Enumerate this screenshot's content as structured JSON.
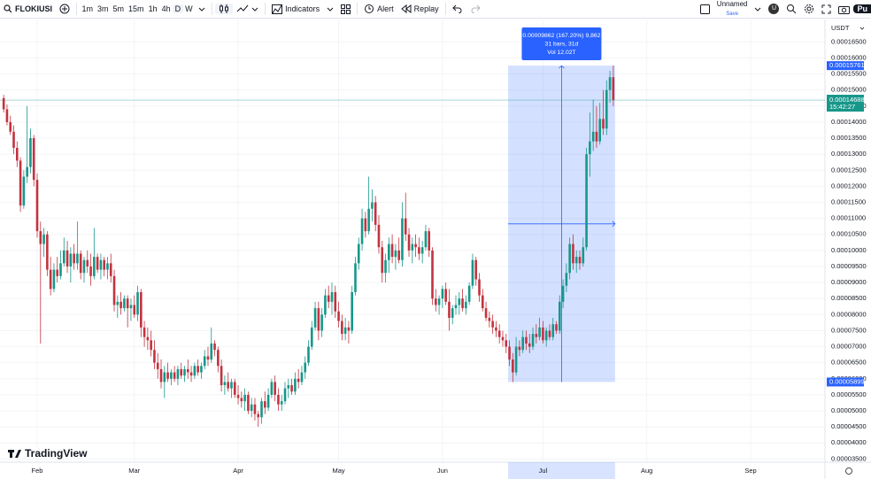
{
  "toolbar": {
    "symbol": "FLOKIUSI",
    "intervals": [
      "1m",
      "3m",
      "5m",
      "15m",
      "1h",
      "4h",
      "D",
      "W"
    ],
    "indicators": "Indicators",
    "alert": "Alert",
    "replay": "Replay",
    "layout_name": "Unnamed",
    "save": "Save",
    "user": "U",
    "publish": "Pu"
  },
  "chart_data": {
    "type": "candlestick",
    "currency": "USDT",
    "watermark": "TradingView",
    "up_color": "#17978a",
    "down_color": "#c2333f",
    "grid": true,
    "xlim": [
      -1.1,
      245.2
    ],
    "xticks": [
      {
        "value": 10,
        "label": "Feb"
      },
      {
        "value": 39,
        "label": "Mar"
      },
      {
        "value": 70,
        "label": "Apr"
      },
      {
        "value": 100,
        "label": "May"
      },
      {
        "value": 131,
        "label": "Jun"
      },
      {
        "value": 161,
        "label": "Jul"
      },
      {
        "value": 192,
        "label": "Aug"
      },
      {
        "value": 223,
        "label": "Sep"
      }
    ],
    "ylim": [
      3.4e-05,
      0.000172
    ],
    "yticks": [
      {
        "value": 3.5e-05,
        "label": "0.00003500"
      },
      {
        "value": 4e-05,
        "label": "0.00004000"
      },
      {
        "value": 4.5e-05,
        "label": "0.00004500"
      },
      {
        "value": 5e-05,
        "label": "0.00005000"
      },
      {
        "value": 5.5e-05,
        "label": "0.00005500"
      },
      {
        "value": 6e-05,
        "label": "0.00006000"
      },
      {
        "value": 6.5e-05,
        "label": "0.00006500"
      },
      {
        "value": 7e-05,
        "label": "0.00007000"
      },
      {
        "value": 7.5e-05,
        "label": "0.00007500"
      },
      {
        "value": 8e-05,
        "label": "0.00008000"
      },
      {
        "value": 8.5e-05,
        "label": "0.00008500"
      },
      {
        "value": 9e-05,
        "label": "0.00009000"
      },
      {
        "value": 9.5e-05,
        "label": "0.00009500"
      },
      {
        "value": 0.0001,
        "label": "0.00010000"
      },
      {
        "value": 0.000105,
        "label": "0.00010500"
      },
      {
        "value": 0.00011,
        "label": "0.00011000"
      },
      {
        "value": 0.000115,
        "label": "0.00011500"
      },
      {
        "value": 0.00012,
        "label": "0.00012000"
      },
      {
        "value": 0.000125,
        "label": "0.00012500"
      },
      {
        "value": 0.00013,
        "label": "0.00013000"
      },
      {
        "value": 0.000135,
        "label": "0.00013500"
      },
      {
        "value": 0.00014,
        "label": "0.00014000"
      },
      {
        "value": 0.000145,
        "label": "0.00014500"
      },
      {
        "value": 0.00015,
        "label": "0.00015000"
      },
      {
        "value": 0.000155,
        "label": "0.00015500"
      },
      {
        "value": 0.00016,
        "label": "0.00016000"
      },
      {
        "value": 0.000165,
        "label": "0.00016500"
      }
    ],
    "last_price": 0.00014688,
    "countdown": "15:42:27",
    "measure": {
      "change": "0.00009862 (167.20%) 9,862",
      "bars": "31 bars, 31d",
      "volume": "Vol 12.02T"
    },
    "ohlc": [
      [
        0.0001475,
        0.0001485,
        0.000143,
        0.000144
      ],
      [
        0.000144,
        0.0001455,
        0.000139,
        0.00014
      ],
      [
        0.00014,
        0.000142,
        0.000136,
        0.000137
      ],
      [
        0.000137,
        0.000139,
        0.00013,
        0.000132
      ],
      [
        0.000132,
        0.000134,
        0.000126,
        0.000128
      ],
      [
        0.000128,
        0.000129,
        0.000112,
        0.000114
      ],
      [
        0.000114,
        0.000125,
        0.000113,
        0.000123
      ],
      [
        0.000123,
        0.000145,
        0.000121,
        0.000126
      ],
      [
        0.000126,
        0.000138,
        0.000124,
        0.000135
      ],
      [
        0.000135,
        0.000136,
        0.00012,
        0.000122
      ],
      [
        0.000122,
        0.000124,
        0.000104,
        0.000106
      ],
      [
        0.000106,
        0.000109,
        7.1e-05,
        0.000102
      ],
      [
        0.000102,
        0.000107,
        9.8e-05,
        0.000105
      ],
      [
        0.000105,
        0.000106,
        9.2e-05,
        9.4e-05
      ],
      [
        9.4e-05,
        9.8e-05,
        8.6e-05,
        8.8e-05
      ],
      [
        8.8e-05,
        9.6e-05,
        8.7e-05,
        9.4e-05
      ],
      [
        9.4e-05,
        9.8e-05,
        9e-05,
        9.2e-05
      ],
      [
        9.2e-05,
        0.0001,
        9.1e-05,
        9.6e-05
      ],
      [
        9.6e-05,
        0.000104,
        9.5e-05,
        0.0001
      ],
      [
        0.0001,
        0.000103,
        9.3e-05,
        9.5e-05
      ],
      [
        9.5e-05,
        0.000101,
        9e-05,
        9.9e-05
      ],
      [
        9.9e-05,
        0.000102,
        9.4e-05,
        9.6e-05
      ],
      [
        9.6e-05,
        0.000109,
        9.4e-05,
        9.9e-05
      ],
      [
        9.9e-05,
        0.0001,
        9.1e-05,
        9.3e-05
      ],
      [
        9.3e-05,
        9.8e-05,
        9e-05,
        9.7e-05
      ],
      [
        9.7e-05,
        0.0001,
        9.3e-05,
        9.5e-05
      ],
      [
        9.5e-05,
        9.9e-05,
        8.9e-05,
        9.2e-05
      ],
      [
        9.2e-05,
        0.000107,
        9.1e-05,
        9.8e-05
      ],
      [
        9.8e-05,
        9.9e-05,
        9.3e-05,
        9.4e-05
      ],
      [
        9.4e-05,
        9.9e-05,
        9.1e-05,
        9.7e-05
      ],
      [
        9.7e-05,
        9.8e-05,
        9.2e-05,
        9.4e-05
      ],
      [
        9.4e-05,
        9.8e-05,
        9.1e-05,
        9.6e-05
      ],
      [
        9.6e-05,
        9.9e-05,
        9e-05,
        9.2e-05
      ],
      [
        9.2e-05,
        9.4e-05,
        8.1e-05,
        8.3e-05
      ],
      [
        8.3e-05,
        8.6e-05,
        7.9e-05,
        8.4e-05
      ],
      [
        8.4e-05,
        8.7e-05,
        8e-05,
        8.2e-05
      ],
      [
        8.2e-05,
        8.6e-05,
        8.1e-05,
        8.5e-05
      ],
      [
        8.5e-05,
        8.6e-05,
        7.6e-05,
        8.2e-05
      ],
      [
        8.2e-05,
        8.5e-05,
        7.8e-05,
        8.3e-05
      ],
      [
        8.3e-05,
        8.6e-05,
        7.9e-05,
        8e-05
      ],
      [
        8e-05,
        8.9e-05,
        7.8e-05,
        8.7e-05
      ],
      [
        8.7e-05,
        8.8e-05,
        7.3e-05,
        7.6e-05
      ],
      [
        7.6e-05,
        7.8e-05,
        7e-05,
        7.3e-05
      ],
      [
        7.3e-05,
        7.6e-05,
        6.9e-05,
        7.2e-05
      ],
      [
        7.2e-05,
        7.5e-05,
        6.7e-05,
        6.9e-05
      ],
      [
        6.9e-05,
        7.2e-05,
        6.3e-05,
        6.5e-05
      ],
      [
        6.5e-05,
        6.8e-05,
        6e-05,
        6.3e-05
      ],
      [
        6.3e-05,
        6.6e-05,
        5.7e-05,
        5.9e-05
      ],
      [
        5.9e-05,
        6.4e-05,
        5.4e-05,
        6.2e-05
      ],
      [
        6.2e-05,
        6.5e-05,
        5.9e-05,
        6e-05
      ],
      [
        6e-05,
        6.3e-05,
        5.8e-05,
        6.2e-05
      ],
      [
        6.2e-05,
        6.4e-05,
        5.9e-05,
        6e-05
      ],
      [
        6e-05,
        6.4e-05,
        5.8e-05,
        6.3e-05
      ],
      [
        6.3e-05,
        6.5e-05,
        6e-05,
        6.1e-05
      ],
      [
        6.1e-05,
        6.4e-05,
        5.9e-05,
        6.3e-05
      ],
      [
        6.3e-05,
        6.6e-05,
        6e-05,
        6.2e-05
      ],
      [
        6.2e-05,
        6.4e-05,
        5.9e-05,
        6.1e-05
      ],
      [
        6.1e-05,
        6.5e-05,
        6e-05,
        6.4e-05
      ],
      [
        6.4e-05,
        6.6e-05,
        6.1e-05,
        6.2e-05
      ],
      [
        6.2e-05,
        6.5e-05,
        6e-05,
        6.4e-05
      ],
      [
        6.4e-05,
        6.9e-05,
        6.3e-05,
        6.7e-05
      ],
      [
        6.7e-05,
        7e-05,
        6.4e-05,
        6.6e-05
      ],
      [
        6.6e-05,
        7.6e-05,
        6.5e-05,
        7.1e-05
      ],
      [
        7.1e-05,
        7.2e-05,
        6.7e-05,
        6.9e-05
      ],
      [
        6.9e-05,
        7e-05,
        6.2e-05,
        6.4e-05
      ],
      [
        6.4e-05,
        6.6e-05,
        5.6e-05,
        5.8e-05
      ],
      [
        5.8e-05,
        6.1e-05,
        5.5e-05,
        5.9e-05
      ],
      [
        5.9e-05,
        6.2e-05,
        5.6e-05,
        5.7e-05
      ],
      [
        5.7e-05,
        6e-05,
        5.4e-05,
        5.9e-05
      ],
      [
        5.9e-05,
        6e-05,
        5.4e-05,
        5.5e-05
      ],
      [
        5.5e-05,
        5.8e-05,
        5.2e-05,
        5.4e-05
      ],
      [
        5.4e-05,
        5.6e-05,
        5.1e-05,
        5.3e-05
      ],
      [
        5.3e-05,
        5.7e-05,
        5e-05,
        5.5e-05
      ],
      [
        5.5e-05,
        5.6e-05,
        4.9e-05,
        5e-05
      ],
      [
        5e-05,
        5.4e-05,
        4.8e-05,
        5.2e-05
      ],
      [
        5.2e-05,
        5.4e-05,
        4.7e-05,
        4.9e-05
      ],
      [
        4.9e-05,
        5e-05,
        4.5e-05,
        4.8e-05
      ],
      [
        4.8e-05,
        5.4e-05,
        4.6e-05,
        5.3e-05
      ],
      [
        5.3e-05,
        5.6e-05,
        4.9e-05,
        5.1e-05
      ],
      [
        5.1e-05,
        5.7e-05,
        5e-05,
        5.5e-05
      ],
      [
        5.5e-05,
        6e-05,
        5.4e-05,
        5.9e-05
      ],
      [
        5.9e-05,
        6.1e-05,
        5.3e-05,
        5.5e-05
      ],
      [
        5.5e-05,
        5.7e-05,
        5e-05,
        5.2e-05
      ],
      [
        5.2e-05,
        5.5e-05,
        5e-05,
        5.3e-05
      ],
      [
        5.3e-05,
        5.9e-05,
        5.2e-05,
        5.7e-05
      ],
      [
        5.7e-05,
        6e-05,
        5.4e-05,
        5.8e-05
      ],
      [
        5.8e-05,
        6e-05,
        5.5e-05,
        5.6e-05
      ],
      [
        5.6e-05,
        6.2e-05,
        5.5e-05,
        6e-05
      ],
      [
        6e-05,
        6.3e-05,
        5.7e-05,
        5.9e-05
      ],
      [
        5.9e-05,
        6.4e-05,
        5.8e-05,
        6.2e-05
      ],
      [
        6.2e-05,
        6.7e-05,
        6e-05,
        6.5e-05
      ],
      [
        6.5e-05,
        7.2e-05,
        6.4e-05,
        7e-05
      ],
      [
        7e-05,
        7.8e-05,
        6.9e-05,
        7.6e-05
      ],
      [
        7.6e-05,
        8.4e-05,
        7.5e-05,
        8.2e-05
      ],
      [
        8.2e-05,
        8.4e-05,
        7.2e-05,
        7.5e-05
      ],
      [
        7.5e-05,
        8.2e-05,
        7.3e-05,
        8e-05
      ],
      [
        8e-05,
        8.8e-05,
        7.9e-05,
        8.6e-05
      ],
      [
        8.6e-05,
        8.9e-05,
        8.2e-05,
        8.4e-05
      ],
      [
        8.4e-05,
        9e-05,
        8e-05,
        8.7e-05
      ],
      [
        8.7e-05,
        8.9e-05,
        7.9e-05,
        8.1e-05
      ],
      [
        8.1e-05,
        8.4e-05,
        7.6e-05,
        7.8e-05
      ],
      [
        7.8e-05,
        8e-05,
        7.2e-05,
        7.4e-05
      ],
      [
        7.4e-05,
        7.9e-05,
        7.2e-05,
        7.6e-05
      ],
      [
        7.6e-05,
        7.8e-05,
        7.1e-05,
        7.5e-05
      ],
      [
        7.5e-05,
        8.9e-05,
        7.4e-05,
        8.7e-05
      ],
      [
        8.7e-05,
        9.8e-05,
        8.6e-05,
        9.6e-05
      ],
      [
        9.6e-05,
        0.000104,
        9.4e-05,
        0.000102
      ],
      [
        0.000102,
        0.000113,
        0.0001,
        0.00011
      ],
      [
        0.00011,
        0.000112,
        0.000104,
        0.000106
      ],
      [
        0.000106,
        0.000123,
        0.000105,
        0.000113
      ],
      [
        0.000113,
        0.000119,
        0.000109,
        0.000115
      ],
      [
        0.000115,
        0.000117,
        0.000106,
        0.000108
      ],
      [
        0.000108,
        0.000111,
        9.9e-05,
        0.000101
      ],
      [
        0.000101,
        0.000103,
        9e-05,
        9.3e-05
      ],
      [
        9.3e-05,
        9.9e-05,
        9e-05,
        9.7e-05
      ],
      [
        9.7e-05,
        0.000104,
        9.3e-05,
        0.000102
      ],
      [
        0.000102,
        0.000105,
        9.6e-05,
        9.8e-05
      ],
      [
        9.8e-05,
        0.000102,
        9.4e-05,
        0.0001
      ],
      [
        0.0001,
        0.000104,
        9.6e-05,
        9.7e-05
      ],
      [
        9.7e-05,
        0.000115,
        9.5e-05,
        0.00011
      ],
      [
        0.00011,
        0.000118,
        0.000103,
        0.000105
      ],
      [
        0.000105,
        0.000107,
        9.8e-05,
        0.0001
      ],
      [
        0.0001,
        0.000104,
        9.6e-05,
        0.000102
      ],
      [
        0.000102,
        0.000105,
        9.8e-05,
        0.000101
      ],
      [
        0.000101,
        0.000104,
        9.7e-05,
        9.9e-05
      ],
      [
        9.9e-05,
        0.000103,
        9.6e-05,
        0.000101
      ],
      [
        0.000101,
        0.000108,
        0.0001,
        0.000106
      ],
      [
        0.000106,
        0.000107,
        9.8e-05,
        0.0001
      ],
      [
        0.0001,
        0.000101,
        8.3e-05,
        8.5e-05
      ],
      [
        8.5e-05,
        8.8e-05,
        8.1e-05,
        8.3e-05
      ],
      [
        8.3e-05,
        8.6e-05,
        8e-05,
        8.5e-05
      ],
      [
        8.5e-05,
        8.9e-05,
        8.2e-05,
        8.8e-05
      ],
      [
        8.8e-05,
        9e-05,
        8.3e-05,
        8.4e-05
      ],
      [
        8.4e-05,
        8.8e-05,
        7.5e-05,
        7.9e-05
      ],
      [
        7.9e-05,
        8.3e-05,
        7.7e-05,
        8.2e-05
      ],
      [
        8.2e-05,
        8.6e-05,
        8e-05,
        8.3e-05
      ],
      [
        8.3e-05,
        8.7e-05,
        8e-05,
        8.5e-05
      ],
      [
        8.5e-05,
        8.8e-05,
        8.1e-05,
        8.2e-05
      ],
      [
        8.2e-05,
        8.6e-05,
        8e-05,
        8.4e-05
      ],
      [
        8.4e-05,
        9e-05,
        8.3e-05,
        8.9e-05
      ],
      [
        8.9e-05,
        9.9e-05,
        8.8e-05,
        9.7e-05
      ],
      [
        9.7e-05,
        9.8e-05,
        8.9e-05,
        9.1e-05
      ],
      [
        9.1e-05,
        9.3e-05,
        8.4e-05,
        8.6e-05
      ],
      [
        8.6e-05,
        8.8e-05,
        8.1e-05,
        8.2e-05
      ],
      [
        8.2e-05,
        8.4e-05,
        7.8e-05,
        7.9e-05
      ],
      [
        7.9e-05,
        8.1e-05,
        7.6e-05,
        7.8e-05
      ],
      [
        7.8e-05,
        8e-05,
        7.4e-05,
        7.6e-05
      ],
      [
        7.6e-05,
        7.8e-05,
        7.3e-05,
        7.5e-05
      ],
      [
        7.5e-05,
        7.7e-05,
        7.1e-05,
        7.3e-05
      ],
      [
        7.3e-05,
        7.5e-05,
        7e-05,
        7.2e-05
      ],
      [
        7.2e-05,
        7.4e-05,
        6.8e-05,
        7e-05
      ],
      [
        7e-05,
        7.2e-05,
        6.4e-05,
        6.6e-05
      ],
      [
        6.6e-05,
        6.8e-05,
        5.899e-05,
        6.2e-05
      ],
      [
        6.2e-05,
        7.3e-05,
        6.1e-05,
        7e-05
      ],
      [
        7e-05,
        7.2e-05,
        6.7e-05,
        6.9e-05
      ],
      [
        6.9e-05,
        7.5e-05,
        6.8e-05,
        7.3e-05
      ],
      [
        7.3e-05,
        7.5e-05,
        6.9e-05,
        7.1e-05
      ],
      [
        7.1e-05,
        7.4e-05,
        6.8e-05,
        7e-05
      ],
      [
        7e-05,
        7.6e-05,
        6.9e-05,
        7.4e-05
      ],
      [
        7.4e-05,
        7.7e-05,
        7.1e-05,
        7.3e-05
      ],
      [
        7.3e-05,
        7.9e-05,
        7.2e-05,
        7.6e-05
      ],
      [
        7.6e-05,
        7.8e-05,
        7.1e-05,
        7.2e-05
      ],
      [
        7.2e-05,
        7.6e-05,
        7e-05,
        7.5e-05
      ],
      [
        7.5e-05,
        7.7e-05,
        7.2e-05,
        7.3e-05
      ],
      [
        7.3e-05,
        7.9e-05,
        7.2e-05,
        7.7e-05
      ],
      [
        7.7e-05,
        7.8e-05,
        7.4e-05,
        7.5e-05
      ],
      [
        7.5e-05,
        8.6e-05,
        7.4e-05,
        8.4e-05
      ],
      [
        8.4e-05,
        9.1e-05,
        8.2e-05,
        8.9e-05
      ],
      [
        8.9e-05,
        9.6e-05,
        8.7e-05,
        9.3e-05
      ],
      [
        9.3e-05,
        0.000104,
        9.1e-05,
        0.000102
      ],
      [
        0.000102,
        0.000105,
        9.4e-05,
        9.6e-05
      ],
      [
        9.6e-05,
        0.0001,
        9.3e-05,
        9.8e-05
      ],
      [
        9.8e-05,
        0.0001,
        9.4e-05,
        9.6e-05
      ],
      [
        9.6e-05,
        0.000104,
        9.5e-05,
        0.000101
      ],
      [
        0.000101,
        0.000132,
        0.0001,
        0.00013
      ],
      [
        0.00013,
        0.000143,
        0.000123,
        0.000134
      ],
      [
        0.000134,
        0.000147,
        0.000131,
        0.000137
      ],
      [
        0.000137,
        0.000145,
        0.000132,
        0.000134
      ],
      [
        0.000134,
        0.000146,
        0.000133,
        0.000141
      ],
      [
        0.000141,
        0.00015,
        0.000136,
        0.000138
      ],
      [
        0.000138,
        0.000153,
        0.000136,
        0.00015
      ],
      [
        0.00015,
        0.000156,
        0.000146,
        0.000154
      ],
      [
        0.000154,
        0.00015761,
        0.000145,
        0.00014688
      ]
    ]
  }
}
